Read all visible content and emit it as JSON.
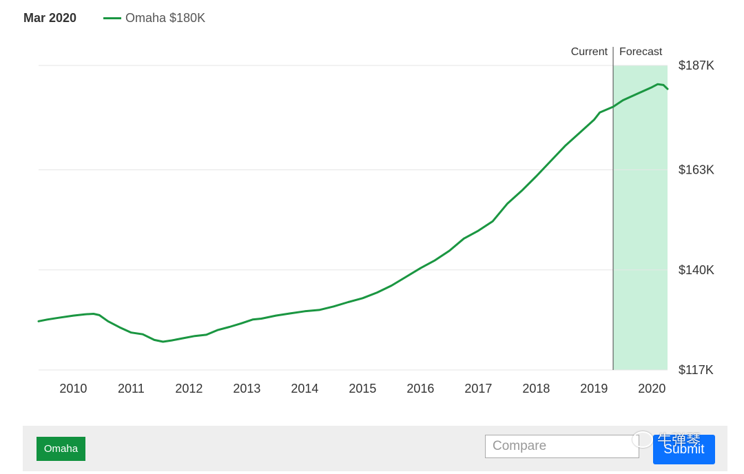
{
  "header": {
    "date": "Mar 2020",
    "legend_label": "Omaha $180K"
  },
  "colors": {
    "line": "#1a9641",
    "forecast_fill": "#c9f0da",
    "gridline": "#e6e6e6",
    "chip": "#11913f",
    "submit": "#0b72ff"
  },
  "chart_data": {
    "type": "line",
    "title": "",
    "xlabel": "",
    "ylabel": "",
    "x_ticks": [
      "2010",
      "2011",
      "2012",
      "2013",
      "2014",
      "2015",
      "2016",
      "2017",
      "2018",
      "2019",
      "2020"
    ],
    "y_ticks": [
      "$187K",
      "$163K",
      "$140K",
      "$117K"
    ],
    "y_tick_values": [
      187,
      163,
      140,
      117
    ],
    "ylim": [
      117,
      187
    ],
    "xlim": [
      2009.4,
      2020.27
    ],
    "grid": true,
    "current_label": "Current",
    "forecast_label": "Forecast",
    "forecast_start": 2019.33,
    "series": [
      {
        "name": "Omaha",
        "x": [
          2009.4,
          2009.55,
          2009.75,
          2010.0,
          2010.2,
          2010.35,
          2010.45,
          2010.6,
          2010.8,
          2011.0,
          2011.2,
          2011.4,
          2011.55,
          2011.7,
          2011.9,
          2012.1,
          2012.3,
          2012.5,
          2012.7,
          2012.9,
          2013.1,
          2013.25,
          2013.5,
          2013.75,
          2014.0,
          2014.25,
          2014.5,
          2014.75,
          2015.0,
          2015.25,
          2015.5,
          2015.75,
          2016.0,
          2016.25,
          2016.5,
          2016.75,
          2017.0,
          2017.25,
          2017.5,
          2017.75,
          2018.0,
          2018.25,
          2018.5,
          2018.75,
          2019.0,
          2019.1,
          2019.33,
          2019.5,
          2019.75,
          2020.0,
          2020.1,
          2020.2,
          2020.27
        ],
        "values": [
          128.2,
          128.6,
          129.0,
          129.5,
          129.8,
          129.9,
          129.6,
          128.2,
          126.8,
          125.6,
          125.2,
          123.9,
          123.5,
          123.8,
          124.3,
          124.8,
          125.1,
          126.2,
          126.9,
          127.7,
          128.6,
          128.8,
          129.5,
          130.0,
          130.5,
          130.8,
          131.6,
          132.6,
          133.5,
          134.8,
          136.4,
          138.4,
          140.4,
          142.2,
          144.4,
          147.2,
          149.0,
          151.2,
          155.2,
          158.2,
          161.5,
          165.0,
          168.5,
          171.5,
          174.5,
          176.2,
          177.5,
          179.0,
          180.5,
          182.0,
          182.7,
          182.5,
          181.6
        ]
      }
    ]
  },
  "controls": {
    "region_label": "Omaha",
    "compare_placeholder": "Compare",
    "submit_label": "Submit"
  },
  "watermark": {
    "text": "牛弹琴"
  }
}
